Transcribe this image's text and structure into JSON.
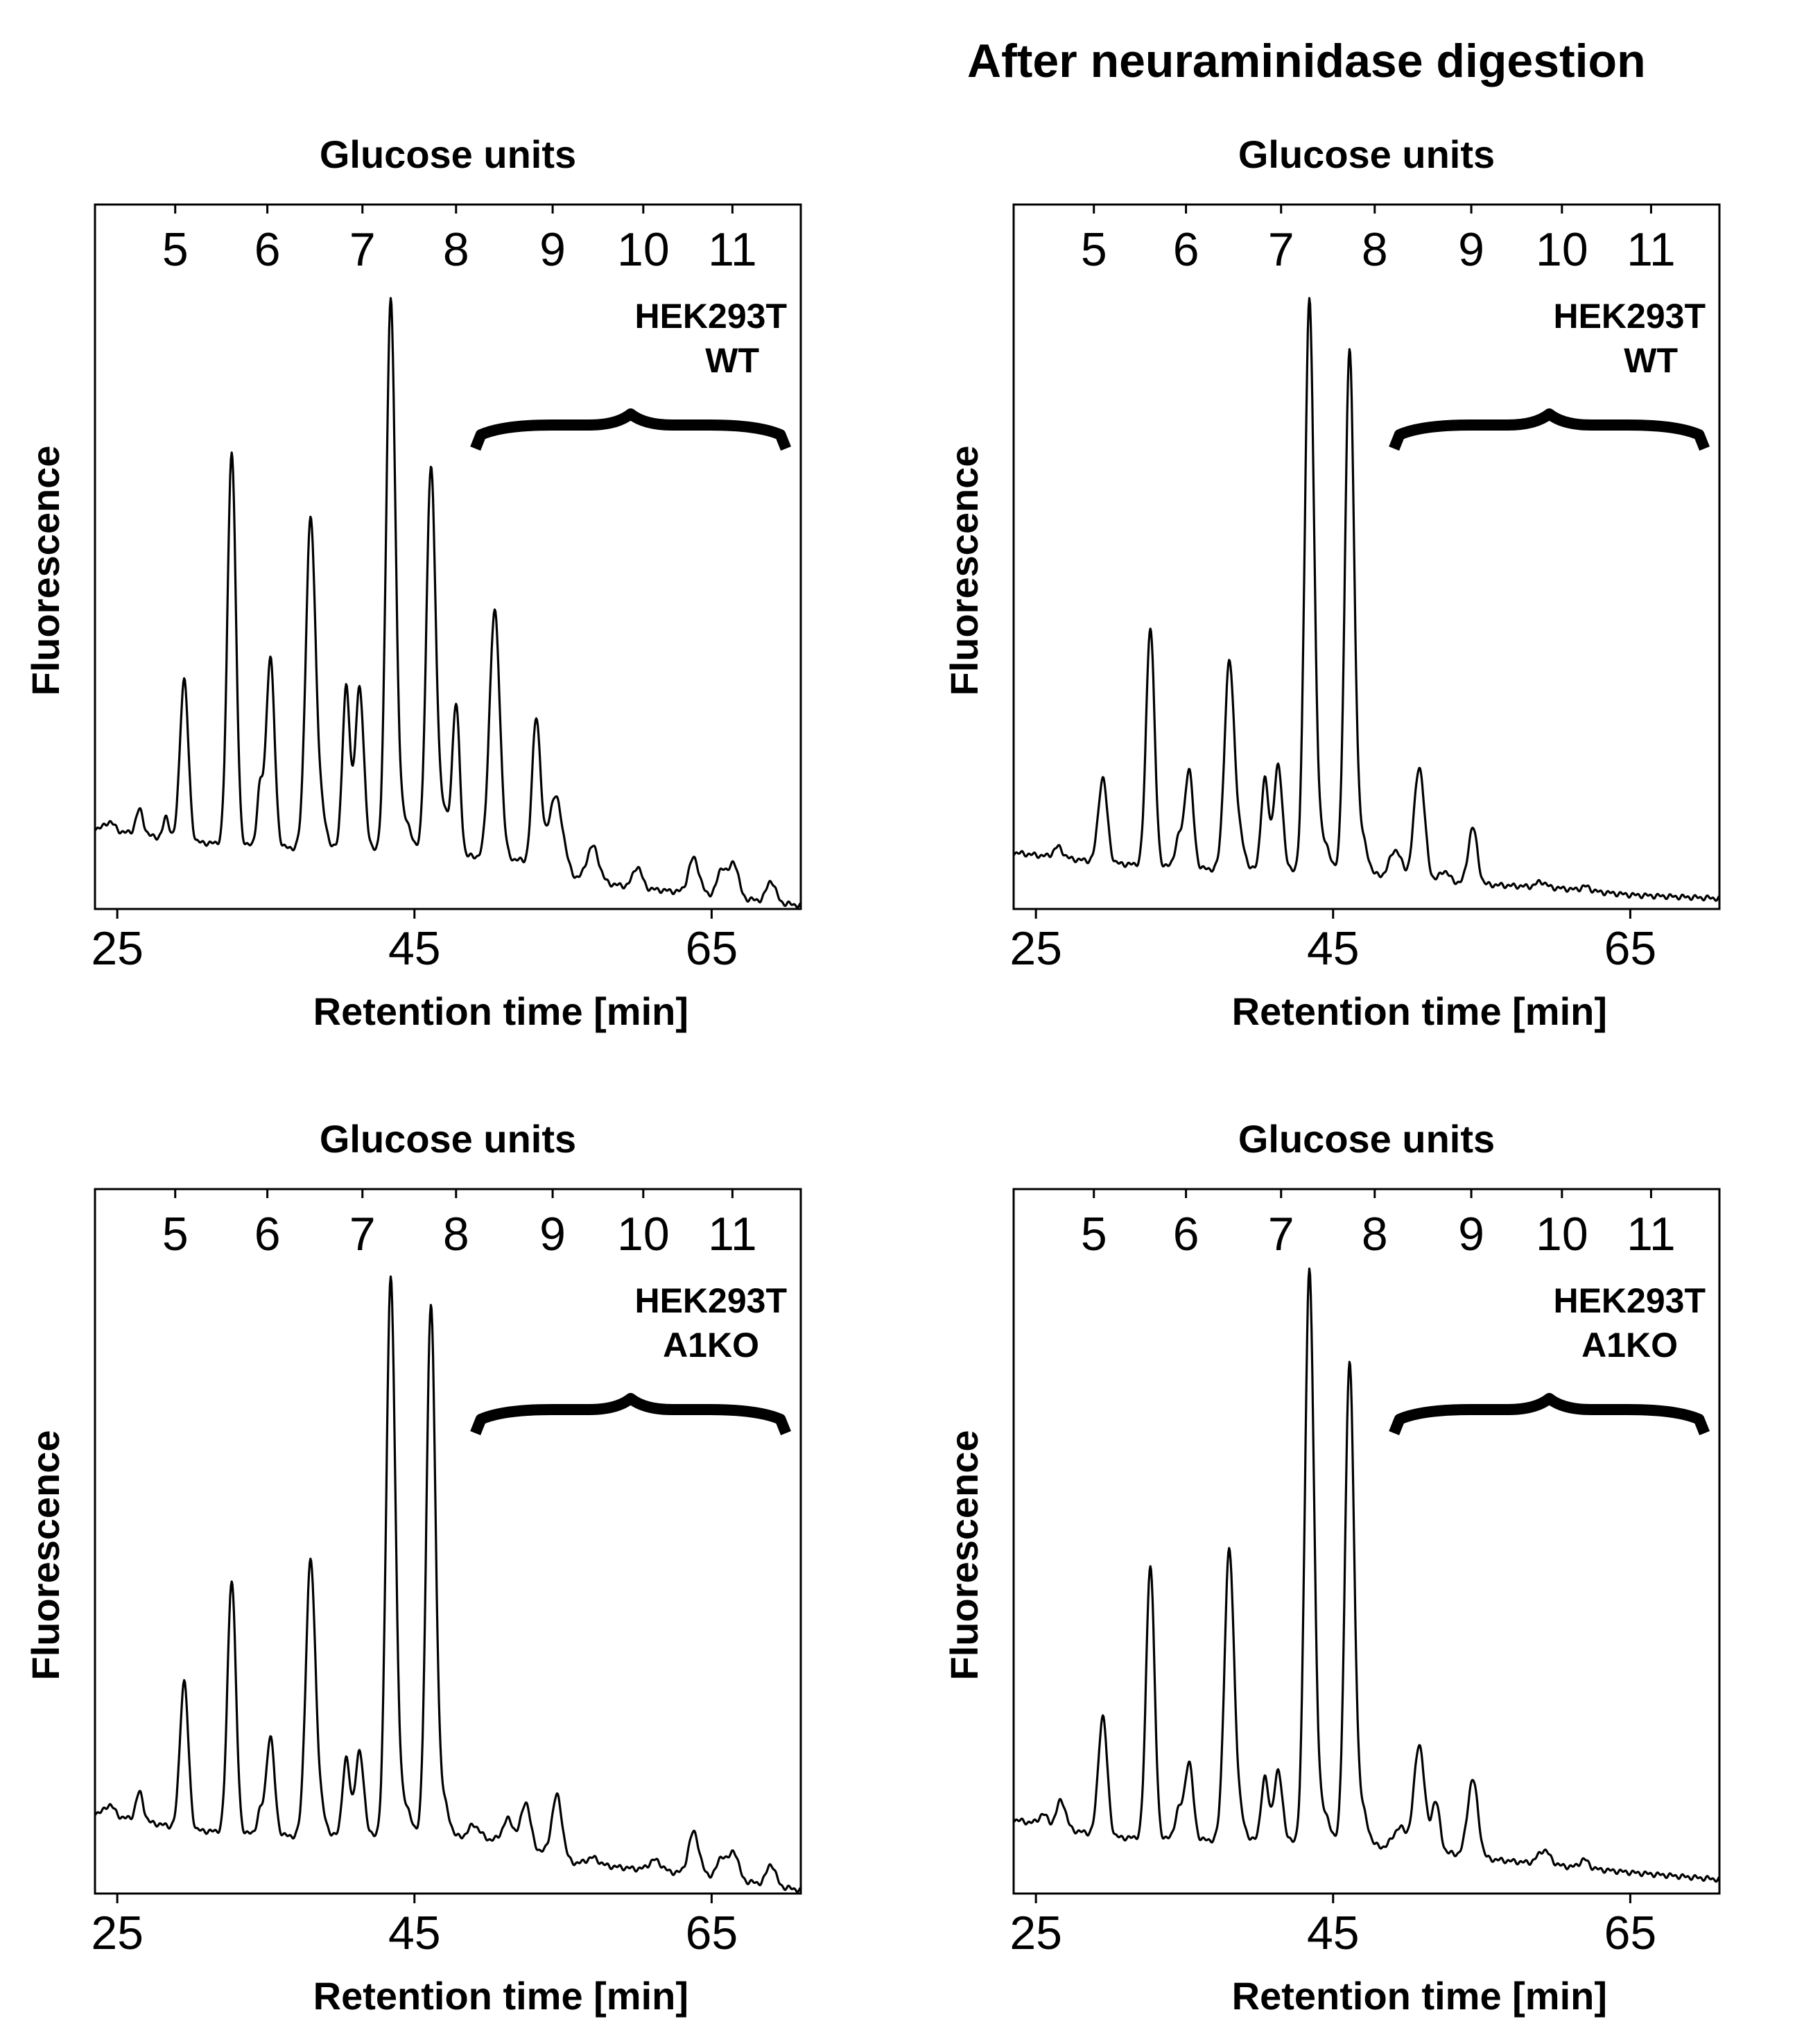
{
  "figure": {
    "suptitle": "After neuraminidase digestion",
    "colors": {
      "line": "#000000",
      "background": "#ffffff"
    }
  },
  "chart_data": [
    {
      "type": "line",
      "panel": "top-left",
      "top_axis_title": "Glucose units",
      "xlabel": "Retention time [min]",
      "ylabel": "Fluorescence",
      "sample_label": [
        "HEK293T",
        "WT"
      ],
      "bracket_range_gu": [
        8.2,
        11.6
      ],
      "x_range_min": [
        23.5,
        71
      ],
      "x_ticks": [
        25,
        45,
        65
      ],
      "glucose_units": {
        "labels": [
          "5",
          "6",
          "7",
          "8",
          "9",
          "10",
          "11"
        ],
        "retention_min": [
          28.9,
          35.1,
          41.5,
          47.8,
          54.3,
          60.4,
          66.4
        ]
      },
      "y_range": [
        0,
        100
      ],
      "baseline": {
        "x": [
          23.5,
          30,
          38,
          45,
          52,
          55,
          60,
          65,
          71
        ],
        "y": [
          11.5,
          9.5,
          8.5,
          8,
          7,
          4.5,
          3,
          2,
          0.5
        ]
      },
      "peaks": [
        {
          "rt": 24.5,
          "height": 1.2,
          "width": 0.3
        },
        {
          "rt": 26.5,
          "height": 3.5,
          "width": 0.25
        },
        {
          "rt": 28.3,
          "height": 3,
          "width": 0.2
        },
        {
          "rt": 29.5,
          "height": 23,
          "width": 0.28
        },
        {
          "rt": 32.7,
          "height": 56,
          "width": 0.28
        },
        {
          "rt": 34.6,
          "height": 8,
          "width": 0.2
        },
        {
          "rt": 35.3,
          "height": 27,
          "width": 0.28
        },
        {
          "rt": 38.0,
          "height": 45,
          "width": 0.32
        },
        {
          "rt": 38.6,
          "height": 6,
          "width": 0.4
        },
        {
          "rt": 40.4,
          "height": 23,
          "width": 0.25
        },
        {
          "rt": 41.3,
          "height": 23,
          "width": 0.3
        },
        {
          "rt": 43.4,
          "height": 75,
          "width": 0.3
        },
        {
          "rt": 44.0,
          "height": 6,
          "width": 0.6
        },
        {
          "rt": 46.1,
          "height": 53,
          "width": 0.3
        },
        {
          "rt": 46.8,
          "height": 7,
          "width": 0.45
        },
        {
          "rt": 47.8,
          "height": 21,
          "width": 0.25
        },
        {
          "rt": 50.4,
          "height": 35,
          "width": 0.35
        },
        {
          "rt": 53.2,
          "height": 21,
          "width": 0.28
        },
        {
          "rt": 54.5,
          "height": 11,
          "width": 0.5
        },
        {
          "rt": 57.0,
          "height": 5,
          "width": 0.4
        },
        {
          "rt": 60.0,
          "height": 3,
          "width": 0.3
        },
        {
          "rt": 63.8,
          "height": 5,
          "width": 0.35
        },
        {
          "rt": 65.7,
          "height": 4,
          "width": 0.3
        },
        {
          "rt": 66.5,
          "height": 5,
          "width": 0.3
        },
        {
          "rt": 69.0,
          "height": 3,
          "width": 0.3
        }
      ]
    },
    {
      "type": "line",
      "panel": "top-right",
      "top_axis_title": "Glucose units",
      "xlabel": "Retention time [min]",
      "ylabel": "Fluorescence",
      "sample_label": [
        "HEK293T",
        "WT"
      ],
      "bracket_range_gu": [
        8.2,
        11.6
      ],
      "x_range_min": [
        23.5,
        71
      ],
      "x_ticks": [
        25,
        45,
        65
      ],
      "glucose_units": {
        "labels": [
          "5",
          "6",
          "7",
          "8",
          "9",
          "10",
          "11"
        ],
        "retention_min": [
          28.9,
          35.1,
          41.5,
          47.8,
          54.3,
          60.4,
          66.4
        ]
      },
      "y_range": [
        0,
        100
      ],
      "baseline": {
        "x": [
          23.5,
          30,
          38,
          45,
          52,
          55,
          60,
          65,
          71
        ],
        "y": [
          8,
          6.5,
          5.5,
          5,
          4,
          3.5,
          3,
          2,
          1.5
        ]
      },
      "peaks": [
        {
          "rt": 26.5,
          "height": 1.5,
          "width": 0.3
        },
        {
          "rt": 29.5,
          "height": 12,
          "width": 0.3
        },
        {
          "rt": 32.7,
          "height": 34,
          "width": 0.28
        },
        {
          "rt": 34.6,
          "height": 4,
          "width": 0.25
        },
        {
          "rt": 35.3,
          "height": 14,
          "width": 0.28
        },
        {
          "rt": 38.0,
          "height": 28,
          "width": 0.32
        },
        {
          "rt": 38.6,
          "height": 5,
          "width": 0.4
        },
        {
          "rt": 40.4,
          "height": 13,
          "width": 0.25
        },
        {
          "rt": 41.3,
          "height": 15,
          "width": 0.3
        },
        {
          "rt": 43.4,
          "height": 78,
          "width": 0.3
        },
        {
          "rt": 44.0,
          "height": 6,
          "width": 0.6
        },
        {
          "rt": 46.1,
          "height": 73,
          "width": 0.3
        },
        {
          "rt": 46.8,
          "height": 6,
          "width": 0.45
        },
        {
          "rt": 49.2,
          "height": 4,
          "width": 0.4
        },
        {
          "rt": 50.8,
          "height": 16,
          "width": 0.35
        },
        {
          "rt": 52.5,
          "height": 1.5,
          "width": 0.3
        },
        {
          "rt": 54.4,
          "height": 8,
          "width": 0.3
        },
        {
          "rt": 59.0,
          "height": 0.8,
          "width": 0.3
        },
        {
          "rt": 62.0,
          "height": 0.6,
          "width": 0.3
        }
      ]
    },
    {
      "type": "line",
      "panel": "bottom-left",
      "top_axis_title": "Glucose units",
      "xlabel": "Retention time [min]",
      "ylabel": "Fluorescence",
      "sample_label": [
        "HEK293T",
        "A1KO"
      ],
      "bracket_range_gu": [
        8.2,
        11.6
      ],
      "x_range_min": [
        23.5,
        71
      ],
      "x_ticks": [
        25,
        45,
        65
      ],
      "glucose_units": {
        "labels": [
          "5",
          "6",
          "7",
          "8",
          "9",
          "10",
          "11"
        ],
        "retention_min": [
          28.9,
          35.1,
          41.5,
          47.8,
          54.3,
          60.4,
          66.4
        ]
      },
      "y_range": [
        0,
        100
      ],
      "baseline": {
        "x": [
          23.5,
          30,
          38,
          45,
          52,
          55,
          60,
          65,
          71
        ],
        "y": [
          11.5,
          9,
          8,
          8,
          7.5,
          4.5,
          3.5,
          2.5,
          0.5
        ]
      },
      "peaks": [
        {
          "rt": 24.5,
          "height": 1.5,
          "width": 0.3
        },
        {
          "rt": 26.5,
          "height": 4,
          "width": 0.25
        },
        {
          "rt": 29.5,
          "height": 21,
          "width": 0.28
        },
        {
          "rt": 32.7,
          "height": 36,
          "width": 0.28
        },
        {
          "rt": 34.6,
          "height": 3,
          "width": 0.2
        },
        {
          "rt": 35.3,
          "height": 14,
          "width": 0.28
        },
        {
          "rt": 38.0,
          "height": 38,
          "width": 0.32
        },
        {
          "rt": 38.6,
          "height": 4,
          "width": 0.4
        },
        {
          "rt": 40.4,
          "height": 11,
          "width": 0.25
        },
        {
          "rt": 41.3,
          "height": 12,
          "width": 0.3
        },
        {
          "rt": 43.4,
          "height": 76,
          "width": 0.3
        },
        {
          "rt": 44.0,
          "height": 6,
          "width": 0.6
        },
        {
          "rt": 46.1,
          "height": 74,
          "width": 0.3
        },
        {
          "rt": 46.8,
          "height": 6,
          "width": 0.45
        },
        {
          "rt": 49.0,
          "height": 2,
          "width": 0.4
        },
        {
          "rt": 51.3,
          "height": 3,
          "width": 0.35
        },
        {
          "rt": 52.5,
          "height": 6,
          "width": 0.3
        },
        {
          "rt": 54.6,
          "height": 9,
          "width": 0.35
        },
        {
          "rt": 57.0,
          "height": 1,
          "width": 0.4
        },
        {
          "rt": 61.2,
          "height": 1.5,
          "width": 0.4
        },
        {
          "rt": 63.8,
          "height": 6,
          "width": 0.35
        },
        {
          "rt": 65.7,
          "height": 3,
          "width": 0.3
        },
        {
          "rt": 66.5,
          "height": 4,
          "width": 0.3
        },
        {
          "rt": 69.0,
          "height": 3,
          "width": 0.3
        }
      ]
    },
    {
      "type": "line",
      "panel": "bottom-right",
      "top_axis_title": "Glucose units",
      "xlabel": "Retention time [min]",
      "ylabel": "Fluorescence",
      "sample_label": [
        "HEK293T",
        "A1KO"
      ],
      "bracket_range_gu": [
        8.2,
        11.6
      ],
      "x_range_min": [
        23.5,
        71
      ],
      "x_ticks": [
        25,
        45,
        65
      ],
      "glucose_units": {
        "labels": [
          "5",
          "6",
          "7",
          "8",
          "9",
          "10",
          "11"
        ],
        "retention_min": [
          28.9,
          35.1,
          41.5,
          47.8,
          54.3,
          60.4,
          66.4
        ]
      },
      "y_range": [
        0,
        100
      ],
      "baseline": {
        "x": [
          23.5,
          30,
          38,
          45,
          52,
          55,
          60,
          65,
          71
        ],
        "y": [
          10.5,
          8,
          7.5,
          7,
          6,
          5,
          4,
          3,
          2
        ]
      },
      "peaks": [
        {
          "rt": 25.5,
          "height": 1.5,
          "width": 0.3
        },
        {
          "rt": 26.7,
          "height": 4,
          "width": 0.3
        },
        {
          "rt": 29.5,
          "height": 17,
          "width": 0.3
        },
        {
          "rt": 32.7,
          "height": 39,
          "width": 0.28
        },
        {
          "rt": 34.6,
          "height": 4,
          "width": 0.25
        },
        {
          "rt": 35.3,
          "height": 11,
          "width": 0.28
        },
        {
          "rt": 38.0,
          "height": 40,
          "width": 0.32
        },
        {
          "rt": 38.6,
          "height": 4,
          "width": 0.4
        },
        {
          "rt": 40.4,
          "height": 9,
          "width": 0.25
        },
        {
          "rt": 41.3,
          "height": 10,
          "width": 0.3
        },
        {
          "rt": 43.4,
          "height": 78,
          "width": 0.3
        },
        {
          "rt": 44.0,
          "height": 6,
          "width": 0.6
        },
        {
          "rt": 46.1,
          "height": 67,
          "width": 0.3
        },
        {
          "rt": 46.8,
          "height": 6,
          "width": 0.45
        },
        {
          "rt": 49.5,
          "height": 3,
          "width": 0.45
        },
        {
          "rt": 50.8,
          "height": 15,
          "width": 0.35
        },
        {
          "rt": 51.9,
          "height": 7,
          "width": 0.28
        },
        {
          "rt": 54.4,
          "height": 11,
          "width": 0.35
        },
        {
          "rt": 59.2,
          "height": 2,
          "width": 0.4
        },
        {
          "rt": 61.9,
          "height": 1.2,
          "width": 0.3
        }
      ]
    }
  ]
}
